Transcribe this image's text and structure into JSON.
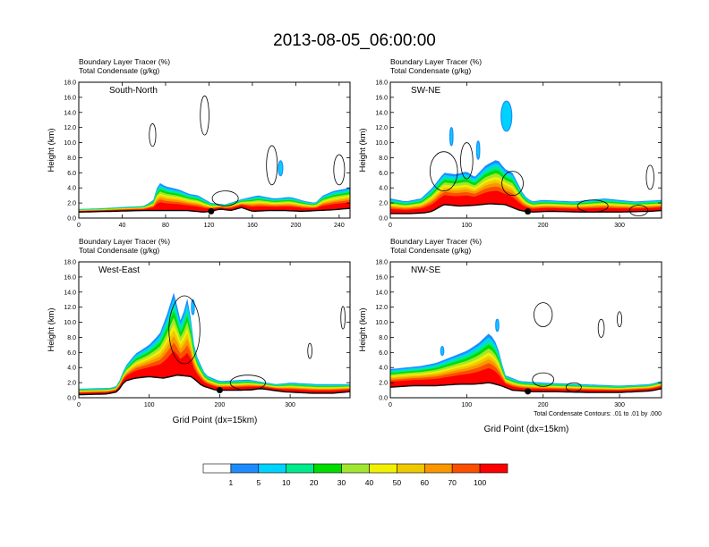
{
  "figure": {
    "title": "2013-08-05_06:00:00",
    "contour_note": "Total Condensate Contours: .01 to .01 by .000",
    "colorbar": {
      "labels": [
        "1",
        "5",
        "10",
        "20",
        "30",
        "40",
        "50",
        "60",
        "70",
        "100"
      ],
      "colors": [
        "#ffffff",
        "#1e8cff",
        "#00d2ff",
        "#00eb8c",
        "#00dc00",
        "#a0e632",
        "#f0f000",
        "#f0c800",
        "#fa9600",
        "#fa5000",
        "#ff0000"
      ]
    }
  },
  "chart_data": [
    {
      "type": "heatmap",
      "panel": "south-north",
      "label": "South-North",
      "left_title_1": "Boundary Layer Tracer   (%)",
      "left_title_2": "Total Condensate   (g/kg)",
      "xlabel": "",
      "ylabel": "Height (km)",
      "xlim": [
        0,
        250
      ],
      "ylim": [
        0,
        18
      ],
      "x_ticks": [
        0,
        40,
        80,
        120,
        160,
        200,
        240
      ],
      "y_ticks": [
        "0.0",
        "2.0",
        "4.0",
        "6.0",
        "8.0",
        "10.0",
        "12.0",
        "14.0",
        "16.0",
        "18.0"
      ],
      "marker_x": 122,
      "pbl_top": [
        [
          0,
          1.2
        ],
        [
          20,
          1.3
        ],
        [
          45,
          1.5
        ],
        [
          60,
          1.6
        ],
        [
          70,
          2.5
        ],
        [
          73,
          4.8
        ],
        [
          80,
          4.2
        ],
        [
          92,
          3.8
        ],
        [
          102,
          3.2
        ],
        [
          110,
          3.0
        ],
        [
          122,
          2.0
        ],
        [
          135,
          1.8
        ],
        [
          150,
          2.5
        ],
        [
          165,
          3.0
        ],
        [
          180,
          2.6
        ],
        [
          195,
          2.8
        ],
        [
          210,
          2.2
        ],
        [
          218,
          2.0
        ],
        [
          225,
          3.0
        ],
        [
          235,
          3.6
        ],
        [
          250,
          4.0
        ]
      ],
      "terrain": [
        [
          0,
          0.8
        ],
        [
          30,
          0.9
        ],
        [
          60,
          1.0
        ],
        [
          80,
          1.0
        ],
        [
          100,
          1.0
        ],
        [
          115,
          0.8
        ],
        [
          122,
          0.9
        ],
        [
          130,
          1.2
        ],
        [
          140,
          1.0
        ],
        [
          150,
          1.4
        ],
        [
          160,
          0.9
        ],
        [
          175,
          1.0
        ],
        [
          190,
          1.0
        ],
        [
          205,
          0.9
        ],
        [
          220,
          1.0
        ],
        [
          235,
          1.1
        ],
        [
          250,
          1.3
        ]
      ],
      "clouds": [
        {
          "x": 116,
          "y": 13.6,
          "rx": 4,
          "ry": 2.6
        },
        {
          "x": 68,
          "y": 11.0,
          "rx": 3,
          "ry": 1.5
        },
        {
          "x": 178,
          "y": 7.0,
          "rx": 5,
          "ry": 2.6
        },
        {
          "x": 240,
          "y": 6.4,
          "rx": 5,
          "ry": 2.0
        },
        {
          "x": 135,
          "y": 2.6,
          "rx": 12,
          "ry": 1.0
        }
      ],
      "blue_blobs": [
        {
          "x": 186,
          "y": 6.6,
          "rx": 2,
          "ry": 1.0
        }
      ]
    },
    {
      "type": "heatmap",
      "panel": "sw-ne",
      "label": "SW-NE",
      "left_title_1": "Boundary Layer Tracer   (%)",
      "left_title_2": "Total Condensate   (g/kg)",
      "xlabel": "",
      "ylabel": "Height (km)",
      "xlim": [
        0,
        355
      ],
      "ylim": [
        0,
        18
      ],
      "x_ticks": [
        0,
        100,
        200,
        300
      ],
      "y_ticks": [
        "0.0",
        "2.0",
        "4.0",
        "6.0",
        "8.0",
        "10.0",
        "12.0",
        "14.0",
        "16.0",
        "18.0"
      ],
      "marker_x": 180,
      "pbl_top": [
        [
          0,
          2.6
        ],
        [
          20,
          2.2
        ],
        [
          40,
          2.6
        ],
        [
          55,
          4.0
        ],
        [
          70,
          6.0
        ],
        [
          85,
          5.8
        ],
        [
          100,
          6.2
        ],
        [
          110,
          5.4
        ],
        [
          125,
          7.0
        ],
        [
          140,
          7.8
        ],
        [
          150,
          6.5
        ],
        [
          160,
          6.0
        ],
        [
          175,
          3.0
        ],
        [
          185,
          2.2
        ],
        [
          200,
          2.4
        ],
        [
          240,
          2.2
        ],
        [
          280,
          2.6
        ],
        [
          320,
          2.2
        ],
        [
          355,
          2.4
        ]
      ],
      "terrain": [
        [
          0,
          0.6
        ],
        [
          25,
          0.6
        ],
        [
          45,
          0.7
        ],
        [
          55,
          0.9
        ],
        [
          70,
          1.8
        ],
        [
          90,
          1.6
        ],
        [
          110,
          1.7
        ],
        [
          130,
          1.9
        ],
        [
          150,
          1.8
        ],
        [
          170,
          1.0
        ],
        [
          185,
          0.8
        ],
        [
          210,
          0.9
        ],
        [
          250,
          0.8
        ],
        [
          300,
          0.8
        ],
        [
          340,
          0.9
        ],
        [
          355,
          1.0
        ]
      ],
      "clouds": [
        {
          "x": 70,
          "y": 6.2,
          "rx": 18,
          "ry": 2.6
        },
        {
          "x": 100,
          "y": 7.6,
          "rx": 8,
          "ry": 2.4
        },
        {
          "x": 160,
          "y": 4.6,
          "rx": 14,
          "ry": 1.6
        },
        {
          "x": 265,
          "y": 1.6,
          "rx": 20,
          "ry": 0.8
        },
        {
          "x": 340,
          "y": 5.4,
          "rx": 5,
          "ry": 1.6
        },
        {
          "x": 325,
          "y": 1.0,
          "rx": 12,
          "ry": 0.7
        }
      ],
      "blue_blobs": [
        {
          "x": 80,
          "y": 10.8,
          "rx": 2,
          "ry": 1.2
        },
        {
          "x": 152,
          "y": 13.5,
          "rx": 7,
          "ry": 2.0
        },
        {
          "x": 115,
          "y": 9.0,
          "rx": 2,
          "ry": 1.2
        }
      ]
    },
    {
      "type": "heatmap",
      "panel": "west-east",
      "label": "West-East",
      "left_title_1": "Boundary Layer Tracer   (%)",
      "left_title_2": "Total Condensate   (g/kg)",
      "xlabel": "Grid Point (dx=15km)",
      "ylabel": "Height (km)",
      "xlim": [
        0,
        385
      ],
      "ylim": [
        0,
        18
      ],
      "x_ticks": [
        0,
        100,
        200,
        300
      ],
      "y_ticks": [
        "0.0",
        "2.0",
        "4.0",
        "6.0",
        "8.0",
        "10.0",
        "12.0",
        "14.0",
        "16.0",
        "18.0"
      ],
      "marker_x": 200,
      "pbl_top": [
        [
          0,
          1.2
        ],
        [
          45,
          1.3
        ],
        [
          55,
          1.6
        ],
        [
          65,
          4.0
        ],
        [
          80,
          5.8
        ],
        [
          100,
          7.0
        ],
        [
          115,
          8.5
        ],
        [
          125,
          11.0
        ],
        [
          135,
          14.0
        ],
        [
          145,
          10.0
        ],
        [
          155,
          13.5
        ],
        [
          165,
          6.0
        ],
        [
          180,
          3.0
        ],
        [
          200,
          2.2
        ],
        [
          240,
          2.4
        ],
        [
          280,
          1.8
        ],
        [
          300,
          2.0
        ],
        [
          340,
          1.8
        ],
        [
          385,
          1.8
        ]
      ],
      "terrain": [
        [
          0,
          0.4
        ],
        [
          40,
          0.5
        ],
        [
          55,
          0.8
        ],
        [
          65,
          2.2
        ],
        [
          80,
          2.6
        ],
        [
          100,
          2.8
        ],
        [
          120,
          2.6
        ],
        [
          140,
          3.0
        ],
        [
          160,
          2.8
        ],
        [
          175,
          1.6
        ],
        [
          195,
          1.0
        ],
        [
          230,
          1.0
        ],
        [
          260,
          1.2
        ],
        [
          290,
          0.8
        ],
        [
          330,
          0.6
        ],
        [
          360,
          0.6
        ],
        [
          385,
          0.8
        ]
      ],
      "clouds": [
        {
          "x": 150,
          "y": 9.0,
          "rx": 22,
          "ry": 4.5
        },
        {
          "x": 240,
          "y": 2.0,
          "rx": 25,
          "ry": 1.0
        },
        {
          "x": 328,
          "y": 6.2,
          "rx": 3,
          "ry": 1.0
        },
        {
          "x": 375,
          "y": 10.6,
          "rx": 3,
          "ry": 1.5
        }
      ],
      "blue_blobs": [
        {
          "x": 162,
          "y": 12.0,
          "rx": 2,
          "ry": 1.0
        }
      ]
    },
    {
      "type": "heatmap",
      "panel": "nw-se",
      "label": "NW-SE",
      "left_title_1": "Boundary Layer Tracer   (%)",
      "left_title_2": "Total Condensate   (g/kg)",
      "xlabel": "Grid Point (dx=15km)",
      "ylabel": "Height (km)",
      "xlim": [
        0,
        355
      ],
      "ylim": [
        0,
        18
      ],
      "x_ticks": [
        0,
        100,
        200,
        300
      ],
      "y_ticks": [
        "0.0",
        "2.0",
        "4.0",
        "6.0",
        "8.0",
        "10.0",
        "12.0",
        "14.0",
        "16.0",
        "18.0"
      ],
      "marker_x": 180,
      "pbl_top": [
        [
          0,
          3.8
        ],
        [
          20,
          4.0
        ],
        [
          40,
          4.2
        ],
        [
          60,
          4.6
        ],
        [
          80,
          5.4
        ],
        [
          100,
          6.2
        ],
        [
          115,
          7.2
        ],
        [
          130,
          8.6
        ],
        [
          140,
          7.0
        ],
        [
          150,
          3.0
        ],
        [
          170,
          2.2
        ],
        [
          200,
          2.0
        ],
        [
          250,
          1.8
        ],
        [
          300,
          1.6
        ],
        [
          340,
          1.8
        ],
        [
          355,
          2.2
        ]
      ],
      "terrain": [
        [
          0,
          1.4
        ],
        [
          30,
          1.6
        ],
        [
          60,
          1.6
        ],
        [
          90,
          1.8
        ],
        [
          110,
          1.8
        ],
        [
          130,
          2.0
        ],
        [
          145,
          1.6
        ],
        [
          160,
          1.0
        ],
        [
          185,
          0.8
        ],
        [
          220,
          0.8
        ],
        [
          260,
          0.7
        ],
        [
          300,
          0.7
        ],
        [
          340,
          0.9
        ],
        [
          355,
          1.2
        ]
      ],
      "clouds": [
        {
          "x": 200,
          "y": 11.0,
          "rx": 12,
          "ry": 1.6
        },
        {
          "x": 276,
          "y": 9.2,
          "rx": 4,
          "ry": 1.2
        },
        {
          "x": 300,
          "y": 10.4,
          "rx": 3,
          "ry": 1.0
        },
        {
          "x": 200,
          "y": 2.4,
          "rx": 14,
          "ry": 0.9
        },
        {
          "x": 240,
          "y": 1.4,
          "rx": 10,
          "ry": 0.6
        }
      ],
      "blue_blobs": [
        {
          "x": 140,
          "y": 9.6,
          "rx": 2,
          "ry": 0.8
        },
        {
          "x": 68,
          "y": 6.2,
          "rx": 2,
          "ry": 0.6
        }
      ]
    }
  ]
}
